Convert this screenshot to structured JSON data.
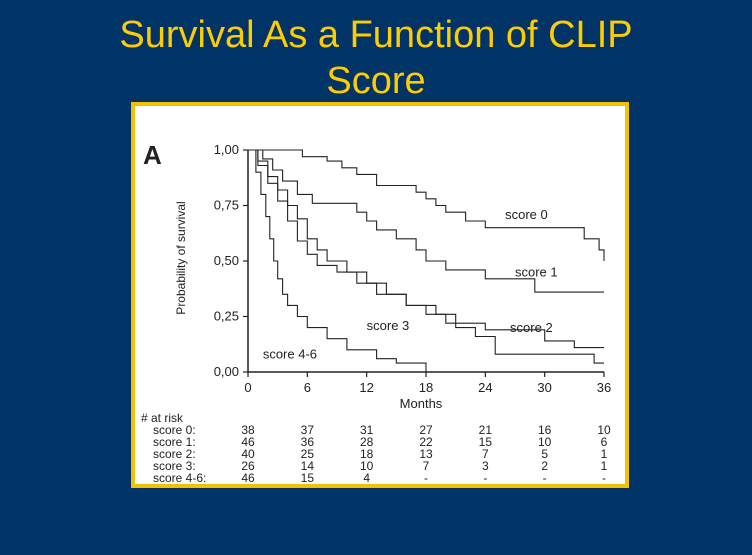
{
  "slide": {
    "title_line1": "Survival As a Function of CLIP",
    "title_line2": "Score"
  },
  "colors": {
    "background": "#003366",
    "title": "#ffcc00",
    "frame_border": "#f2c200",
    "curve": "#222222"
  },
  "chart_data": {
    "type": "line",
    "panel_label": "A",
    "xlabel": "Months",
    "ylabel": "Probability of survival",
    "xlim": [
      0,
      36
    ],
    "ylim": [
      0,
      1
    ],
    "x_ticks": [
      0,
      6,
      12,
      18,
      24,
      30,
      36
    ],
    "y_ticks": [
      0,
      0.25,
      0.5,
      0.75,
      1.0
    ],
    "y_tick_labels": [
      "0,00",
      "0,25",
      "0,50",
      "0,75",
      "1,00"
    ],
    "series": [
      {
        "name": "score 0",
        "points": [
          [
            0,
            1
          ],
          [
            5.5,
            1
          ],
          [
            5.5,
            0.97
          ],
          [
            8,
            0.97
          ],
          [
            8,
            0.95
          ],
          [
            9.5,
            0.95
          ],
          [
            9.5,
            0.92
          ],
          [
            11,
            0.92
          ],
          [
            11,
            0.89
          ],
          [
            13,
            0.89
          ],
          [
            13,
            0.84
          ],
          [
            17,
            0.84
          ],
          [
            17,
            0.81
          ],
          [
            18,
            0.81
          ],
          [
            18,
            0.78
          ],
          [
            19,
            0.78
          ],
          [
            19,
            0.75
          ],
          [
            20,
            0.75
          ],
          [
            20,
            0.72
          ],
          [
            22,
            0.72
          ],
          [
            22,
            0.68
          ],
          [
            24,
            0.68
          ],
          [
            24,
            0.65
          ],
          [
            34,
            0.65
          ],
          [
            34,
            0.6
          ],
          [
            35.5,
            0.6
          ],
          [
            35.5,
            0.55
          ],
          [
            36,
            0.55
          ],
          [
            36,
            0.5
          ]
        ]
      },
      {
        "name": "score 1",
        "points": [
          [
            0,
            1
          ],
          [
            1.5,
            1
          ],
          [
            1.5,
            0.96
          ],
          [
            2.5,
            0.96
          ],
          [
            2.5,
            0.91
          ],
          [
            3.5,
            0.91
          ],
          [
            3.5,
            0.86
          ],
          [
            5,
            0.86
          ],
          [
            5,
            0.8
          ],
          [
            6.5,
            0.8
          ],
          [
            6.5,
            0.76
          ],
          [
            11,
            0.76
          ],
          [
            11,
            0.72
          ],
          [
            12,
            0.72
          ],
          [
            12,
            0.68
          ],
          [
            13,
            0.68
          ],
          [
            13,
            0.64
          ],
          [
            15,
            0.64
          ],
          [
            15,
            0.6
          ],
          [
            17,
            0.6
          ],
          [
            17,
            0.55
          ],
          [
            18,
            0.55
          ],
          [
            18,
            0.5
          ],
          [
            20,
            0.5
          ],
          [
            20,
            0.46
          ],
          [
            24,
            0.46
          ],
          [
            24,
            0.42
          ],
          [
            29,
            0.42
          ],
          [
            29,
            0.36
          ],
          [
            36,
            0.36
          ]
        ]
      },
      {
        "name": "score 2",
        "points": [
          [
            0,
            1
          ],
          [
            1,
            1
          ],
          [
            1,
            0.95
          ],
          [
            2,
            0.95
          ],
          [
            2,
            0.88
          ],
          [
            3,
            0.88
          ],
          [
            3,
            0.82
          ],
          [
            4,
            0.82
          ],
          [
            4,
            0.75
          ],
          [
            5,
            0.75
          ],
          [
            5,
            0.69
          ],
          [
            6,
            0.69
          ],
          [
            6,
            0.6
          ],
          [
            7,
            0.6
          ],
          [
            7,
            0.55
          ],
          [
            8,
            0.55
          ],
          [
            8,
            0.5
          ],
          [
            10,
            0.5
          ],
          [
            10,
            0.45
          ],
          [
            12,
            0.45
          ],
          [
            12,
            0.4
          ],
          [
            14,
            0.4
          ],
          [
            14,
            0.35
          ],
          [
            16,
            0.35
          ],
          [
            16,
            0.3
          ],
          [
            18,
            0.3
          ],
          [
            18,
            0.26
          ],
          [
            20,
            0.26
          ],
          [
            20,
            0.22
          ],
          [
            24,
            0.22
          ],
          [
            24,
            0.19
          ],
          [
            30,
            0.19
          ],
          [
            30,
            0.14
          ],
          [
            33,
            0.14
          ],
          [
            33,
            0.11
          ],
          [
            36,
            0.11
          ]
        ]
      },
      {
        "name": "score 3",
        "points": [
          [
            0,
            1
          ],
          [
            1,
            1
          ],
          [
            1,
            0.93
          ],
          [
            2,
            0.93
          ],
          [
            2,
            0.85
          ],
          [
            3,
            0.85
          ],
          [
            3,
            0.77
          ],
          [
            4,
            0.77
          ],
          [
            4,
            0.68
          ],
          [
            5,
            0.68
          ],
          [
            5,
            0.59
          ],
          [
            6,
            0.59
          ],
          [
            6,
            0.53
          ],
          [
            7,
            0.53
          ],
          [
            7,
            0.48
          ],
          [
            9,
            0.48
          ],
          [
            9,
            0.45
          ],
          [
            11,
            0.45
          ],
          [
            11,
            0.4
          ],
          [
            13,
            0.4
          ],
          [
            13,
            0.35
          ],
          [
            16,
            0.35
          ],
          [
            16,
            0.3
          ],
          [
            19,
            0.3
          ],
          [
            19,
            0.26
          ],
          [
            21,
            0.26
          ],
          [
            21,
            0.2
          ],
          [
            23,
            0.2
          ],
          [
            23,
            0.16
          ],
          [
            25,
            0.16
          ],
          [
            25,
            0.08
          ],
          [
            35,
            0.08
          ],
          [
            35,
            0.04
          ],
          [
            36,
            0.04
          ]
        ]
      },
      {
        "name": "score 4-6",
        "points": [
          [
            0,
            1
          ],
          [
            0.8,
            1
          ],
          [
            0.8,
            0.9
          ],
          [
            1.3,
            0.9
          ],
          [
            1.3,
            0.8
          ],
          [
            1.8,
            0.8
          ],
          [
            1.8,
            0.7
          ],
          [
            2.2,
            0.7
          ],
          [
            2.2,
            0.6
          ],
          [
            2.6,
            0.6
          ],
          [
            2.6,
            0.5
          ],
          [
            3,
            0.5
          ],
          [
            3,
            0.42
          ],
          [
            3.5,
            0.42
          ],
          [
            3.5,
            0.35
          ],
          [
            4,
            0.35
          ],
          [
            4,
            0.3
          ],
          [
            5,
            0.3
          ],
          [
            5,
            0.25
          ],
          [
            6,
            0.25
          ],
          [
            6,
            0.2
          ],
          [
            8,
            0.2
          ],
          [
            8,
            0.15
          ],
          [
            10,
            0.15
          ],
          [
            10,
            0.1
          ],
          [
            13,
            0.1
          ],
          [
            13,
            0.06
          ],
          [
            15,
            0.06
          ],
          [
            15,
            0.04
          ],
          [
            18,
            0.04
          ],
          [
            18,
            0
          ]
        ]
      }
    ],
    "curve_labels": [
      {
        "text": "score 0",
        "x": 26,
        "y": 0.69
      },
      {
        "text": "score 1",
        "x": 27,
        "y": 0.43
      },
      {
        "text": "score 2",
        "x": 26.5,
        "y": 0.18
      },
      {
        "text": "score 3",
        "x": 12,
        "y": 0.19
      },
      {
        "text": "score 4-6",
        "x": 1.5,
        "y": 0.06
      }
    ],
    "at_risk": {
      "header": "# at risk",
      "rows": [
        {
          "label": "score 0:",
          "values": [
            "38",
            "37",
            "31",
            "27",
            "21",
            "16",
            "10"
          ]
        },
        {
          "label": "score 1:",
          "values": [
            "46",
            "36",
            "28",
            "22",
            "15",
            "10",
            "6"
          ]
        },
        {
          "label": "score 2:",
          "values": [
            "40",
            "25",
            "18",
            "13",
            "7",
            "5",
            "1"
          ]
        },
        {
          "label": "score 3:",
          "values": [
            "26",
            "14",
            "10",
            "7",
            "3",
            "2",
            "1"
          ]
        },
        {
          "label": "score 4-6:",
          "values": [
            "46",
            "15",
            "4",
            "-",
            "-",
            "-",
            "-"
          ]
        }
      ]
    }
  }
}
